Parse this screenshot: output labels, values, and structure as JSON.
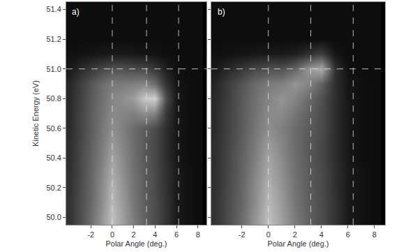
{
  "chart_data": [
    {
      "type": "heatmap",
      "label": "a)",
      "x_label": "Polar Angle (deg.)",
      "y_label": "Kinetic Energy (eV)",
      "xlim": [
        -4.3,
        8.8
      ],
      "ylim": [
        49.95,
        51.45
      ],
      "xticks": [
        -2,
        0,
        2,
        4,
        6,
        8
      ],
      "yticks": [
        {
          "value": 50.0,
          "label": "50.0"
        },
        50.2,
        50.4,
        50.6,
        50.8,
        {
          "value": 51.0,
          "label": "51.0"
        },
        51.2,
        51.4
      ],
      "vlines": [
        0,
        3.2,
        6.2
      ],
      "hlines": [
        51.0
      ],
      "zlim": [
        0,
        100
      ],
      "x": [
        -4,
        -3,
        -2,
        -1,
        0,
        1,
        2,
        3,
        4,
        5,
        6,
        7,
        8
      ],
      "y": [
        50.0,
        50.1,
        50.2,
        50.3,
        50.4,
        50.5,
        50.6,
        50.7,
        50.8,
        50.9,
        51.0,
        51.1,
        51.2,
        51.3,
        51.4
      ],
      "z": [
        [
          20,
          30,
          42,
          58,
          75,
          62,
          48,
          38,
          30,
          20,
          10,
          7,
          5
        ],
        [
          20,
          30,
          40,
          55,
          72,
          60,
          46,
          37,
          30,
          20,
          10,
          7,
          5
        ],
        [
          19,
          29,
          40,
          54,
          70,
          58,
          45,
          36,
          29,
          19,
          10,
          7,
          5
        ],
        [
          19,
          28,
          39,
          52,
          67,
          56,
          44,
          36,
          29,
          19,
          10,
          7,
          5
        ],
        [
          18,
          28,
          38,
          50,
          64,
          54,
          43,
          35,
          28,
          18,
          9,
          6,
          5
        ],
        [
          18,
          27,
          37,
          48,
          60,
          52,
          42,
          35,
          28,
          18,
          9,
          6,
          5
        ],
        [
          17,
          26,
          36,
          46,
          56,
          50,
          42,
          36,
          30,
          18,
          9,
          6,
          5
        ],
        [
          17,
          26,
          36,
          45,
          54,
          52,
          50,
          55,
          50,
          22,
          9,
          6,
          5
        ],
        [
          16,
          25,
          35,
          44,
          52,
          56,
          62,
          78,
          82,
          30,
          9,
          6,
          5
        ],
        [
          15,
          24,
          33,
          42,
          48,
          48,
          50,
          52,
          42,
          20,
          8,
          6,
          5
        ],
        [
          10,
          16,
          22,
          28,
          32,
          32,
          30,
          28,
          22,
          12,
          6,
          5,
          5
        ],
        [
          6,
          7,
          8,
          9,
          10,
          10,
          9,
          8,
          7,
          6,
          5,
          5,
          5
        ],
        [
          5,
          5,
          5,
          5,
          5,
          5,
          5,
          5,
          5,
          5,
          5,
          5,
          5
        ],
        [
          5,
          5,
          5,
          5,
          5,
          5,
          5,
          5,
          5,
          5,
          5,
          5,
          5
        ],
        [
          5,
          5,
          5,
          5,
          5,
          5,
          5,
          5,
          5,
          5,
          5,
          5,
          5
        ]
      ]
    },
    {
      "type": "heatmap",
      "label": "b)",
      "x_label": "Polar Angle (deg.)",
      "tick_labels": "x",
      "xlim": [
        -4.3,
        8.8
      ],
      "ylim": [
        49.95,
        51.45
      ],
      "xticks": [
        -2,
        0,
        2,
        4,
        6,
        8
      ],
      "yticks": [
        {
          "value": 50.0,
          "label": "50.0"
        },
        50.2,
        50.4,
        50.6,
        50.8,
        {
          "value": 51.0,
          "label": "51.0"
        },
        51.2,
        51.4
      ],
      "vlines": [
        0,
        3.2,
        6.4
      ],
      "hlines": [
        51.0
      ],
      "zlim": [
        0,
        100
      ],
      "x": [
        -4,
        -3,
        -2,
        -1,
        0,
        1,
        2,
        3,
        4,
        5,
        6,
        7,
        8
      ],
      "y": [
        50.0,
        50.1,
        50.2,
        50.3,
        50.4,
        50.5,
        50.6,
        50.7,
        50.8,
        50.9,
        51.0,
        51.1,
        51.2,
        51.3,
        51.4
      ],
      "z": [
        [
          20,
          30,
          42,
          58,
          75,
          62,
          48,
          38,
          30,
          20,
          10,
          7,
          5
        ],
        [
          20,
          30,
          40,
          55,
          72,
          60,
          46,
          37,
          30,
          20,
          10,
          7,
          5
        ],
        [
          19,
          29,
          40,
          54,
          70,
          58,
          45,
          36,
          29,
          19,
          10,
          7,
          5
        ],
        [
          19,
          28,
          39,
          52,
          67,
          56,
          44,
          36,
          29,
          19,
          10,
          7,
          5
        ],
        [
          18,
          28,
          38,
          50,
          64,
          54,
          43,
          35,
          28,
          18,
          9,
          6,
          5
        ],
        [
          18,
          27,
          37,
          48,
          60,
          52,
          42,
          35,
          28,
          18,
          9,
          6,
          5
        ],
        [
          17,
          26,
          36,
          46,
          56,
          50,
          42,
          36,
          30,
          18,
          9,
          6,
          5
        ],
        [
          17,
          26,
          36,
          45,
          54,
          54,
          46,
          38,
          30,
          18,
          9,
          6,
          5
        ],
        [
          16,
          25,
          35,
          44,
          52,
          58,
          52,
          42,
          32,
          18,
          9,
          6,
          5
        ],
        [
          15,
          24,
          33,
          42,
          48,
          50,
          58,
          52,
          38,
          18,
          8,
          6,
          5
        ],
        [
          10,
          16,
          22,
          28,
          32,
          32,
          40,
          58,
          68,
          20,
          6,
          5,
          5
        ],
        [
          6,
          7,
          8,
          9,
          10,
          10,
          12,
          18,
          25,
          8,
          5,
          5,
          5
        ],
        [
          5,
          5,
          5,
          5,
          5,
          5,
          5,
          5,
          5,
          5,
          5,
          5,
          5
        ],
        [
          5,
          5,
          5,
          5,
          5,
          5,
          5,
          5,
          5,
          5,
          5,
          5,
          5
        ],
        [
          5,
          5,
          5,
          5,
          5,
          5,
          5,
          5,
          5,
          5,
          5,
          5,
          5
        ]
      ]
    }
  ]
}
